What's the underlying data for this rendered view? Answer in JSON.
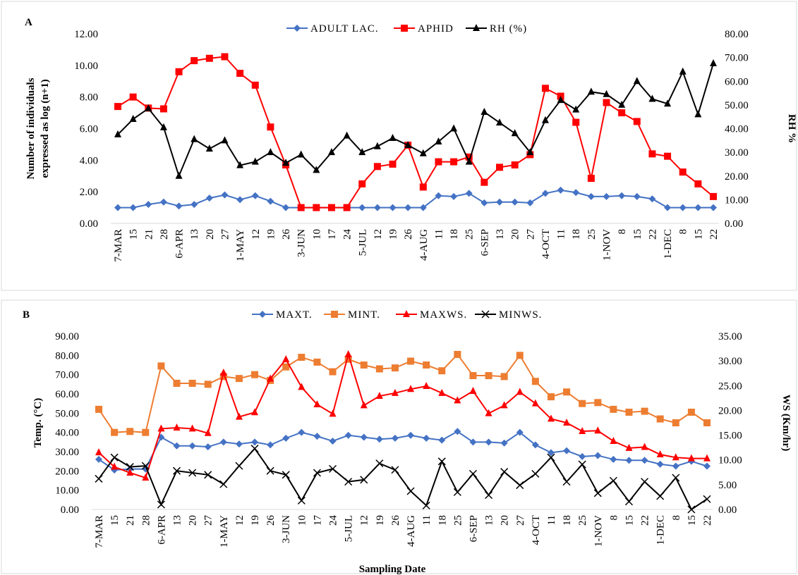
{
  "chart_data": [
    {
      "type": "line",
      "label": "A",
      "ylabel": [
        "Number of individuals",
        "expressed as  log (n+1)"
      ],
      "y2label": "RH %",
      "categories": [
        "7-MAR",
        "15",
        "21",
        "28",
        "6-APR",
        "13",
        "20",
        "27",
        "1-MAY",
        "12",
        "19",
        "26",
        "3-JUN",
        "10",
        "17",
        "24",
        "5-JUL",
        "12",
        "19",
        "26",
        "4-AUG",
        "11",
        "18",
        "25",
        "6-SEP",
        "13",
        "20",
        "27",
        "4-OCT",
        "11",
        "18",
        "25",
        "1-NOV",
        "8",
        "15",
        "22",
        "1-DEC",
        "8",
        "15",
        "22"
      ],
      "ylim": [
        0,
        12
      ],
      "yticks": [
        {
          "value": 0,
          "label": "0.00"
        },
        {
          "value": 2,
          "label": "2.00"
        },
        {
          "value": 4,
          "label": "4.00"
        },
        {
          "value": 6,
          "label": "6.00"
        },
        {
          "value": 8,
          "label": "8.00"
        },
        {
          "value": 10,
          "label": "10.00"
        },
        {
          "value": 12,
          "label": "12.00"
        }
      ],
      "y2lim": [
        0,
        80
      ],
      "y2ticks": [
        {
          "value": 0,
          "label": "0.00"
        },
        {
          "value": 10,
          "label": "10.00"
        },
        {
          "value": 20,
          "label": "20.00"
        },
        {
          "value": 30,
          "label": "30.00"
        },
        {
          "value": 40,
          "label": "40.00"
        },
        {
          "value": 50,
          "label": "50.00"
        },
        {
          "value": 60,
          "label": "60.00"
        },
        {
          "value": 70,
          "label": "70.00"
        },
        {
          "value": 80,
          "label": "80.00"
        }
      ],
      "series": [
        {
          "name": "ADULT LAC.",
          "color": "#4472c4",
          "marker": "diamond",
          "values": [
            1.0,
            1.0,
            1.2,
            1.35,
            1.1,
            1.2,
            1.6,
            1.8,
            1.5,
            1.75,
            1.4,
            1.0,
            1.0,
            1.0,
            1.0,
            1.0,
            1.0,
            1.0,
            1.0,
            1.0,
            1.0,
            1.75,
            1.7,
            1.9,
            1.3,
            1.35,
            1.35,
            1.3,
            1.9,
            2.1,
            1.95,
            1.7,
            1.7,
            1.75,
            1.7,
            1.55,
            1.0,
            1.0,
            1.0,
            1.0
          ]
        },
        {
          "name": "APHID",
          "color": "#ff0000",
          "marker": "square",
          "values": [
            7.4,
            8.0,
            7.3,
            7.25,
            9.6,
            10.3,
            10.45,
            10.55,
            9.5,
            8.75,
            6.1,
            3.7,
            1.0,
            1.0,
            1.0,
            1.0,
            2.5,
            3.6,
            3.75,
            4.95,
            2.3,
            3.9,
            3.9,
            4.2,
            2.6,
            3.55,
            3.7,
            4.35,
            8.55,
            8.05,
            6.4,
            2.85,
            7.65,
            7.0,
            6.45,
            4.4,
            4.25,
            3.25,
            2.5,
            1.7
          ]
        },
        {
          "name": "RH (%)",
          "color": "#000000",
          "marker": "triangle",
          "axis": "y2",
          "values": [
            37.5,
            44,
            48.5,
            40.5,
            20,
            35.5,
            31.5,
            35,
            24.5,
            26,
            30,
            25.5,
            29,
            22.5,
            30,
            37,
            30,
            32.5,
            36,
            33,
            29.5,
            34.5,
            40,
            26,
            47,
            42.5,
            38,
            30,
            43.5,
            52,
            48,
            55.5,
            54.5,
            50,
            60,
            52.5,
            50.5,
            64,
            46,
            67.5
          ]
        }
      ]
    },
    {
      "type": "line",
      "label": "B",
      "ylabel": [
        "Temp. (°C)"
      ],
      "y2label": "WS (Km/hr)",
      "xlabel": "Sampling Date",
      "categories": [
        "7-MAR",
        "15",
        "21",
        "28",
        "6-APR",
        "13",
        "20",
        "27",
        "1-MAY",
        "12",
        "19",
        "26",
        "3-JUN",
        "10",
        "17",
        "24",
        "5-JUL",
        "12",
        "19",
        "26",
        "4-AUG",
        "11",
        "18",
        "25",
        "6-SEP",
        "13",
        "20",
        "27",
        "4-OCT",
        "11",
        "18",
        "25",
        "1-NOV",
        "8",
        "15",
        "22",
        "1-DEC",
        "8",
        "15",
        "22"
      ],
      "ylim": [
        0,
        90
      ],
      "yticks": [
        {
          "value": 0,
          "label": "0.00"
        },
        {
          "value": 10,
          "label": "10.00"
        },
        {
          "value": 20,
          "label": "20.00"
        },
        {
          "value": 30,
          "label": "30.00"
        },
        {
          "value": 40,
          "label": "40.00"
        },
        {
          "value": 50,
          "label": "50.00"
        },
        {
          "value": 60,
          "label": "60.00"
        },
        {
          "value": 70,
          "label": "70.00"
        },
        {
          "value": 80,
          "label": "80.00"
        },
        {
          "value": 90,
          "label": "90.00"
        }
      ],
      "y2lim": [
        0,
        35
      ],
      "y2ticks": [
        {
          "value": 0,
          "label": "0.00"
        },
        {
          "value": 5,
          "label": "5.00"
        },
        {
          "value": 10,
          "label": "10.00"
        },
        {
          "value": 15,
          "label": "15.00"
        },
        {
          "value": 20,
          "label": "20.00"
        },
        {
          "value": 25,
          "label": "25.00"
        },
        {
          "value": 30,
          "label": "30.00"
        },
        {
          "value": 35,
          "label": "35.00"
        }
      ],
      "series": [
        {
          "name": "MAXT.",
          "color": "#4472c4",
          "marker": "diamond",
          "values": [
            26,
            20.5,
            21,
            21,
            37.5,
            33,
            33,
            32.5,
            35,
            34,
            35,
            33.5,
            37,
            40,
            38,
            35.5,
            38.5,
            37.5,
            36.5,
            37,
            38.5,
            37,
            36,
            40.5,
            35,
            35,
            34.5,
            40,
            33.5,
            29.5,
            30.5,
            27.5,
            28,
            26,
            25.5,
            25.5,
            23.5,
            22.5,
            25,
            22.5
          ]
        },
        {
          "name": "MINT.",
          "color": "#ed7d31",
          "marker": "square",
          "values": [
            52,
            40,
            40.5,
            40,
            74.5,
            65.5,
            65.5,
            65,
            69,
            68,
            70,
            67,
            74,
            79,
            76.5,
            71.5,
            78,
            75,
            73,
            73.5,
            77,
            75,
            72,
            80.5,
            69.5,
            69.5,
            69,
            80,
            66.5,
            58.5,
            61,
            55,
            55.5,
            52,
            50.5,
            51,
            47,
            45,
            50.5,
            45
          ]
        },
        {
          "name": "MAXWS.",
          "color": "#ff0000",
          "marker": "triangle",
          "axis": "y2",
          "values": [
            11.5,
            8.6,
            7.4,
            6.4,
            16.3,
            16.5,
            16.3,
            15.4,
            27.6,
            18.7,
            19.6,
            26.4,
            30.3,
            24.7,
            21.2,
            19.3,
            31.3,
            21.0,
            22.9,
            23.5,
            24.3,
            24.9,
            23.5,
            22.0,
            23.9,
            19.4,
            21.0,
            23.7,
            21.4,
            18.3,
            17.5,
            15.8,
            15.9,
            13.8,
            12.4,
            12.6,
            11.1,
            10.5,
            10.3,
            10.3
          ]
        },
        {
          "name": "MINWS.",
          "color": "#000000",
          "marker": "x",
          "axis": "y2",
          "values": [
            6.2,
            10.5,
            8.6,
            8.8,
            1.0,
            7.8,
            7.4,
            7.0,
            5.1,
            8.8,
            12.3,
            7.8,
            7.0,
            1.8,
            7.4,
            8.2,
            5.6,
            6.0,
            9.3,
            8.0,
            3.7,
            0.8,
            9.7,
            3.5,
            7.2,
            2.9,
            7.6,
            4.9,
            7.2,
            10.5,
            5.6,
            9.1,
            3.3,
            5.8,
            1.6,
            5.6,
            2.7,
            6.4,
            0,
            2.1
          ]
        }
      ]
    }
  ]
}
